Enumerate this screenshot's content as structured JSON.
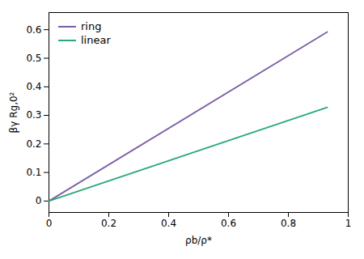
{
  "chart_data": {
    "type": "line",
    "xlabel": "ρb/ρ*",
    "ylabel": "βγ Rg,0²",
    "x": [
      0.0,
      0.93
    ],
    "series": [
      {
        "name": "ring",
        "color": "#7B5EA7",
        "values": [
          0.0,
          0.592
        ]
      },
      {
        "name": "linear",
        "color": "#2AA87A",
        "values": [
          0.0,
          0.328
        ]
      }
    ],
    "xlim": [
      0.0,
      1.0
    ],
    "ylim": [
      -0.04,
      0.66
    ],
    "xticks": [
      0.0,
      0.2,
      0.4,
      0.6,
      0.8,
      1.0
    ],
    "yticks": [
      0.0,
      0.1,
      0.2,
      0.3,
      0.4,
      0.5,
      0.6
    ],
    "grid": false,
    "legend": "upper left"
  }
}
